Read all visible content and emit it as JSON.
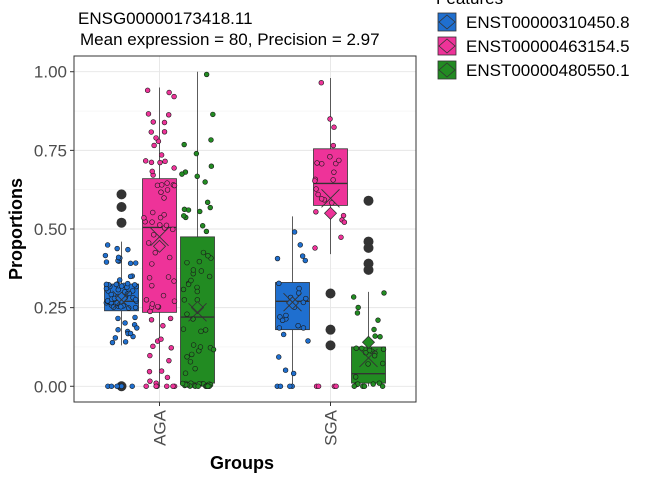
{
  "chart_data": {
    "type": "boxplot",
    "title": "ENSG00000173418.11",
    "subtitle": "Mean expression = 80, Precision = 2.97",
    "xlabel": "Groups",
    "ylabel": "Proportions",
    "categories": [
      "AGA",
      "SGA"
    ],
    "ylim": [
      -0.05,
      1.05
    ],
    "yticks": [
      0.0,
      0.25,
      0.5,
      0.75,
      1.0
    ],
    "ytick_labels": [
      "0.00",
      "0.25",
      "0.50",
      "0.75",
      "1.00"
    ],
    "grid": true,
    "legend": {
      "title": "Features",
      "position": "top-right",
      "entries": [
        "ENST00000310450.8",
        "ENST00000463154.5",
        "ENST00000480550.1"
      ]
    },
    "series": [
      {
        "name": "ENST00000310450.8",
        "color": "#1f6fcf",
        "boxes": [
          {
            "category": "AGA",
            "q1": 0.24,
            "median": 0.27,
            "q3": 0.325,
            "whisker_low": 0.13,
            "whisker_high": 0.46,
            "mean": 0.28,
            "outliers": [
              0.61,
              0.57,
              0.52,
              0.0
            ]
          },
          {
            "category": "SGA",
            "q1": 0.18,
            "median": 0.27,
            "q3": 0.33,
            "whisker_low": 0.0,
            "whisker_high": 0.54,
            "mean": 0.265,
            "outliers": []
          }
        ]
      },
      {
        "name": "ENST00000463154.5",
        "color": "#ee3399",
        "boxes": [
          {
            "category": "AGA",
            "q1": 0.235,
            "median": 0.505,
            "q3": 0.66,
            "whisker_low": 0.0,
            "whisker_high": 0.95,
            "mean": 0.445,
            "outliers": []
          },
          {
            "category": "SGA",
            "q1": 0.575,
            "median": 0.645,
            "q3": 0.755,
            "whisker_low": 0.42,
            "whisker_high": 0.98,
            "mean": 0.55,
            "outliers": [
              0.295,
              0.18,
              0.13
            ]
          }
        ]
      },
      {
        "name": "ENST00000480550.1",
        "color": "#228b22",
        "boxes": [
          {
            "category": "AGA",
            "q1": 0.01,
            "median": 0.22,
            "q3": 0.475,
            "whisker_low": 0.0,
            "whisker_high": 1.0,
            "mean": 0.25,
            "outliers": []
          },
          {
            "category": "SGA",
            "q1": 0.01,
            "median": 0.04,
            "q3": 0.125,
            "whisker_low": 0.0,
            "whisker_high": 0.3,
            "mean": 0.14,
            "outliers": [
              0.59,
              0.46,
              0.44,
              0.39,
              0.37
            ]
          }
        ]
      }
    ]
  }
}
